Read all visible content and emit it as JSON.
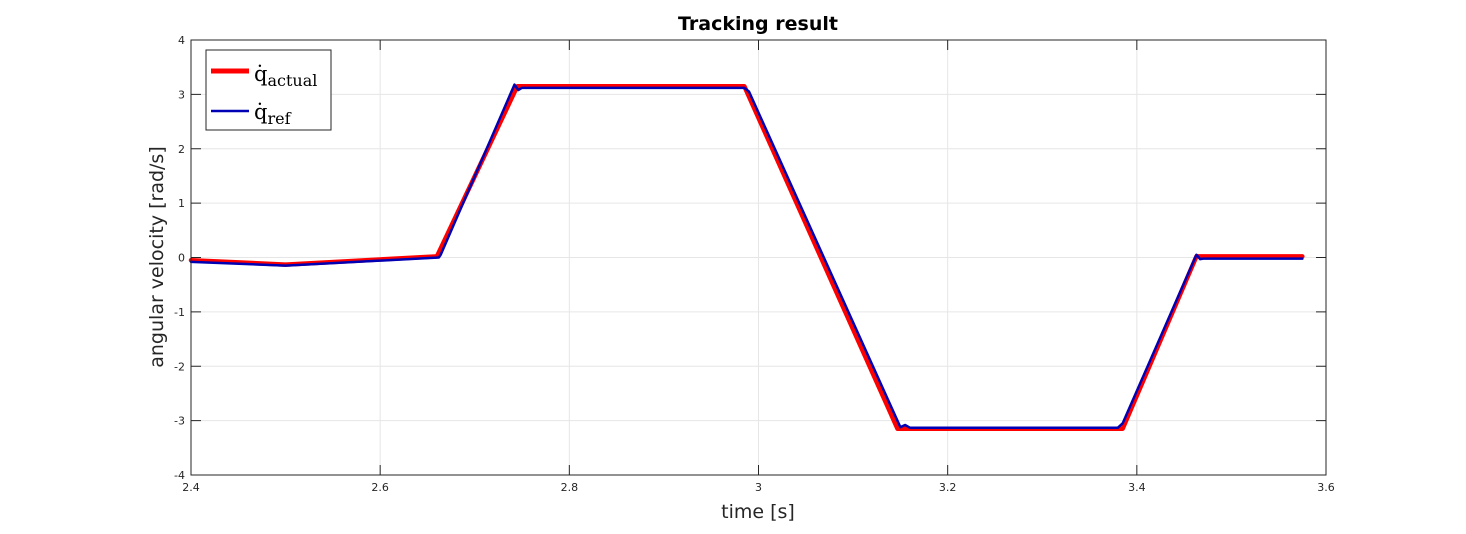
{
  "chart_data": {
    "type": "line",
    "title": "Tracking result",
    "xlabel": "time [s]",
    "ylabel": "angular velocity [rad/s]",
    "xlim": [
      2.4,
      3.6
    ],
    "ylim": [
      -4,
      4
    ],
    "xticks": [
      2.4,
      2.6,
      2.8,
      3.0,
      3.2,
      3.4,
      3.6
    ],
    "xtick_labels": [
      "2.4",
      "2.6",
      "2.8",
      "3",
      "3.2",
      "3.4",
      "3.6"
    ],
    "yticks": [
      -4,
      -3,
      -2,
      -1,
      0,
      1,
      2,
      3,
      4
    ],
    "ytick_labels": [
      "-4",
      "-3",
      "-2",
      "-1",
      "0",
      "1",
      "2",
      "3",
      "4"
    ],
    "grid": true,
    "legend_position": "top-left",
    "series": [
      {
        "name": "q̇actual",
        "legend_base": "q̇",
        "legend_sub": "actual",
        "color": "#ff0000",
        "x": [
          2.4,
          2.5,
          2.66,
          2.745,
          2.985,
          3.147,
          3.385,
          3.463,
          3.575
        ],
        "y": [
          -0.05,
          -0.13,
          0.02,
          3.15,
          3.15,
          -3.15,
          -3.15,
          0.02,
          0.02
        ]
      },
      {
        "name": "q̇ref",
        "legend_base": "q̇",
        "legend_sub": "ref",
        "color": "#0000b4",
        "x": [
          2.4,
          2.5,
          2.662,
          2.664,
          2.742,
          2.746,
          2.75,
          2.985,
          2.99,
          3.15,
          3.155,
          3.16,
          3.38,
          3.385,
          3.463,
          3.467,
          3.47,
          3.575
        ],
        "y": [
          -0.08,
          -0.15,
          0.0,
          0.05,
          3.18,
          3.08,
          3.12,
          3.12,
          3.05,
          -3.12,
          -3.08,
          -3.13,
          -3.13,
          -3.05,
          0.05,
          -0.03,
          -0.02,
          -0.02
        ]
      }
    ]
  }
}
